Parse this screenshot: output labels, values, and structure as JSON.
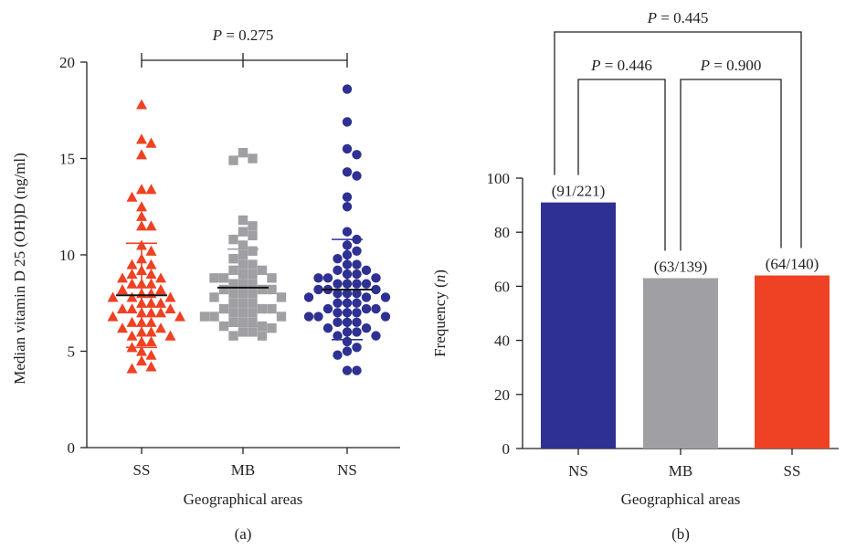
{
  "colors": {
    "SS": "#ef4123",
    "MB": "#a0a0a4",
    "NS": "#2e3192",
    "axis": "#222222"
  },
  "chart_data": [
    {
      "type": "scatter",
      "panel_label": "(a)",
      "xlabel": "Geographical areas",
      "ylabel": "Median vitamin D 25 (OH)D (ng/ml)",
      "ylim": [
        0,
        20
      ],
      "yticks": [
        0,
        5,
        10,
        15,
        20
      ],
      "categories": [
        "SS",
        "MB",
        "NS"
      ],
      "markers": {
        "SS": "triangle",
        "MB": "square",
        "NS": "circle"
      },
      "comparison": {
        "from": "SS",
        "to": "NS",
        "mid": "MB",
        "p_prefix": "P",
        "p_value": "= 0.275"
      },
      "series": [
        {
          "category": "SS",
          "median": 7.9,
          "lower": 5.2,
          "upper": 10.6,
          "values": [
            17.8,
            16.0,
            15.8,
            15.2,
            13.4,
            13.4,
            13.0,
            12.5,
            12.0,
            11.5,
            11.5,
            10.5,
            10.2,
            9.8,
            9.5,
            9.5,
            9.2,
            9.0,
            9.0,
            8.8,
            8.8,
            8.5,
            8.5,
            8.5,
            8.2,
            8.2,
            8.0,
            8.0,
            7.8,
            7.8,
            7.8,
            7.5,
            7.5,
            7.5,
            7.2,
            7.2,
            7.2,
            7.0,
            7.0,
            7.0,
            6.8,
            6.8,
            6.5,
            6.5,
            6.5,
            6.2,
            6.2,
            6.0,
            6.0,
            5.8,
            5.8,
            5.5,
            5.5,
            5.2,
            5.0,
            4.8,
            4.5,
            4.2,
            4.1
          ]
        },
        {
          "category": "MB",
          "median": 8.3,
          "lower": 6.3,
          "upper": 10.3,
          "values": [
            15.3,
            15.0,
            14.9,
            11.8,
            11.5,
            11.2,
            11.0,
            10.8,
            10.5,
            10.2,
            10.0,
            9.8,
            9.5,
            9.5,
            9.2,
            9.2,
            9.0,
            9.0,
            8.8,
            8.8,
            8.8,
            8.5,
            8.5,
            8.5,
            8.2,
            8.2,
            8.2,
            8.0,
            8.0,
            8.0,
            7.8,
            7.8,
            7.5,
            7.5,
            7.5,
            7.2,
            7.2,
            7.2,
            7.0,
            7.0,
            7.0,
            6.8,
            6.8,
            6.8,
            6.5,
            6.5,
            6.5,
            6.3,
            6.3,
            6.2,
            6.0,
            6.0,
            5.8,
            5.8
          ]
        },
        {
          "category": "NS",
          "median": 8.2,
          "lower": 5.6,
          "upper": 10.8,
          "values": [
            18.6,
            16.9,
            15.5,
            15.2,
            14.3,
            14.1,
            13.0,
            12.5,
            11.2,
            10.8,
            10.5,
            10.2,
            10.0,
            9.8,
            9.5,
            9.5,
            9.2,
            9.2,
            9.0,
            9.0,
            8.8,
            8.8,
            8.8,
            8.5,
            8.5,
            8.5,
            8.5,
            8.2,
            8.2,
            8.2,
            8.0,
            8.0,
            8.0,
            7.8,
            7.8,
            7.8,
            7.5,
            7.5,
            7.5,
            7.2,
            7.2,
            7.2,
            7.0,
            7.0,
            7.0,
            6.8,
            6.8,
            6.8,
            6.5,
            6.5,
            6.5,
            6.2,
            6.2,
            6.0,
            6.0,
            5.8,
            5.8,
            5.5,
            5.2,
            5.0,
            4.8,
            4.0,
            4.0
          ]
        }
      ]
    },
    {
      "type": "bar",
      "panel_label": "(b)",
      "xlabel": "Geographical areas",
      "ylabel_prefix": "Frequency (",
      "ylabel_var": "n",
      "ylabel_suffix": ")",
      "ylim": [
        0,
        100
      ],
      "yticks": [
        0,
        20,
        40,
        60,
        80,
        100
      ],
      "categories": [
        "NS",
        "MB",
        "SS"
      ],
      "values": [
        91,
        63,
        64
      ],
      "bar_labels": [
        "(91/221)",
        "(63/139)",
        "(64/140)"
      ],
      "comparisons": [
        {
          "from": "NS",
          "to": "MB",
          "p_prefix": "P",
          "p_value": "= 0.446"
        },
        {
          "from": "MB",
          "to": "SS",
          "p_prefix": "P",
          "p_value": "= 0.900"
        },
        {
          "from": "NS",
          "to": "SS",
          "p_prefix": "P",
          "p_value": "= 0.445"
        }
      ]
    }
  ]
}
